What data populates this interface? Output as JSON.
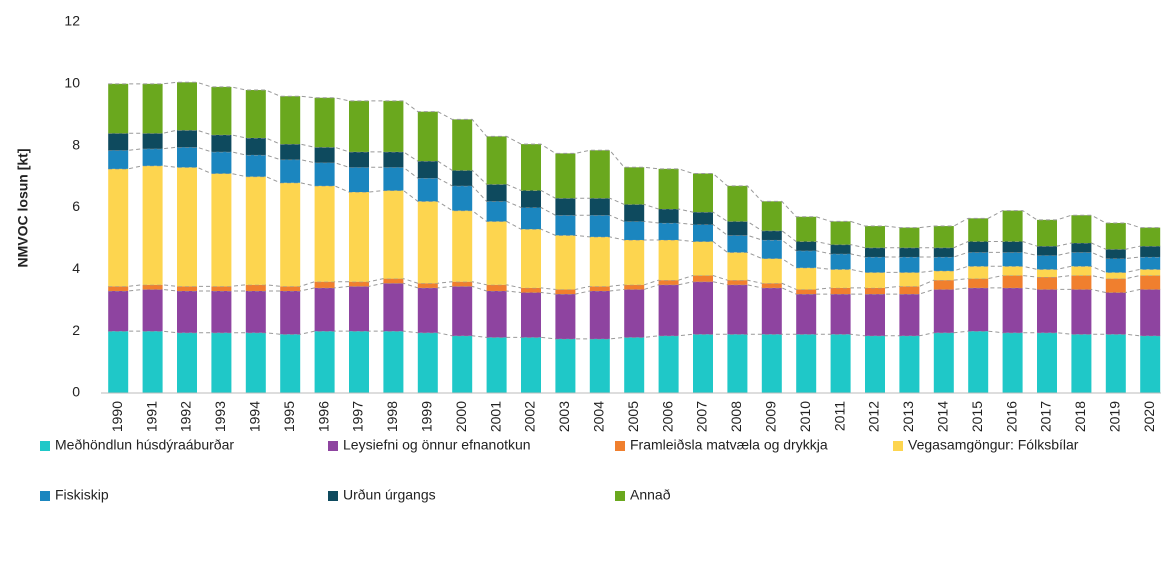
{
  "chart_data": {
    "type": "stacked-bar",
    "y_label": "NMVOC losun [kt]",
    "categories": [
      "1990",
      "1991",
      "1992",
      "1993",
      "1994",
      "1995",
      "1996",
      "1997",
      "1998",
      "1999",
      "2000",
      "2001",
      "2002",
      "2003",
      "2004",
      "2005",
      "2006",
      "2007",
      "2008",
      "2009",
      "2010",
      "2011",
      "2012",
      "2013",
      "2014",
      "2015",
      "2016",
      "2017",
      "2018",
      "2019",
      "2020"
    ],
    "series": [
      {
        "name": "Meðhöndlun húsdýraáburðar",
        "color": "#1fc8c8",
        "values": [
          2.0,
          2.0,
          1.95,
          1.95,
          1.95,
          1.9,
          2.0,
          2.0,
          2.0,
          1.95,
          1.85,
          1.8,
          1.8,
          1.75,
          1.75,
          1.8,
          1.85,
          1.9,
          1.9,
          1.9,
          1.9,
          1.9,
          1.85,
          1.85,
          1.95,
          2.0,
          1.95,
          1.95,
          1.9,
          1.9,
          1.85
        ]
      },
      {
        "name": "Leysiefni og önnur efnanotkun",
        "color": "#8e44a0",
        "values": [
          1.3,
          1.35,
          1.35,
          1.35,
          1.35,
          1.4,
          1.4,
          1.45,
          1.55,
          1.45,
          1.6,
          1.5,
          1.45,
          1.45,
          1.55,
          1.55,
          1.65,
          1.7,
          1.6,
          1.5,
          1.3,
          1.3,
          1.35,
          1.35,
          1.4,
          1.4,
          1.45,
          1.4,
          1.45,
          1.35,
          1.5
        ]
      },
      {
        "name": "Framleiðsla matvæla og drykkja",
        "color": "#f07f2e",
        "values": [
          0.15,
          0.15,
          0.15,
          0.15,
          0.2,
          0.15,
          0.2,
          0.15,
          0.15,
          0.15,
          0.15,
          0.2,
          0.15,
          0.15,
          0.15,
          0.15,
          0.15,
          0.2,
          0.15,
          0.15,
          0.15,
          0.2,
          0.2,
          0.25,
          0.3,
          0.3,
          0.4,
          0.4,
          0.45,
          0.45,
          0.45
        ]
      },
      {
        "name": "Vegasamgöngur: Fólksbílar",
        "color": "#fdd54f",
        "values": [
          3.8,
          3.85,
          3.85,
          3.65,
          3.5,
          3.35,
          3.1,
          2.9,
          2.85,
          2.65,
          2.3,
          2.05,
          1.9,
          1.75,
          1.6,
          1.45,
          1.3,
          1.1,
          0.9,
          0.8,
          0.7,
          0.6,
          0.5,
          0.45,
          0.3,
          0.4,
          0.3,
          0.25,
          0.3,
          0.2,
          0.2
        ]
      },
      {
        "name": "Fiskiskip",
        "color": "#1b86bf",
        "values": [
          0.6,
          0.55,
          0.65,
          0.7,
          0.7,
          0.75,
          0.75,
          0.8,
          0.75,
          0.75,
          0.8,
          0.65,
          0.7,
          0.65,
          0.7,
          0.6,
          0.55,
          0.55,
          0.55,
          0.6,
          0.55,
          0.5,
          0.5,
          0.5,
          0.45,
          0.45,
          0.45,
          0.45,
          0.45,
          0.45,
          0.4
        ]
      },
      {
        "name": "Urðun úrgangs",
        "color": "#0e4a5e",
        "values": [
          0.55,
          0.5,
          0.55,
          0.55,
          0.55,
          0.5,
          0.5,
          0.5,
          0.5,
          0.55,
          0.5,
          0.55,
          0.55,
          0.55,
          0.55,
          0.55,
          0.45,
          0.4,
          0.45,
          0.3,
          0.3,
          0.3,
          0.3,
          0.3,
          0.3,
          0.35,
          0.35,
          0.3,
          0.3,
          0.3,
          0.35
        ]
      },
      {
        "name": "Annað",
        "color": "#6aa81e",
        "values": [
          1.6,
          1.6,
          1.55,
          1.55,
          1.55,
          1.55,
          1.6,
          1.65,
          1.65,
          1.6,
          1.65,
          1.55,
          1.5,
          1.45,
          1.55,
          1.2,
          1.3,
          1.25,
          1.15,
          0.95,
          0.8,
          0.75,
          0.7,
          0.65,
          0.7,
          0.75,
          1.0,
          0.85,
          0.9,
          0.85,
          0.6
        ]
      }
    ],
    "ylim": [
      0,
      12
    ],
    "yticks": [
      0,
      2,
      4,
      6,
      8,
      10,
      12
    ],
    "grid": false,
    "legend": "bottom"
  }
}
